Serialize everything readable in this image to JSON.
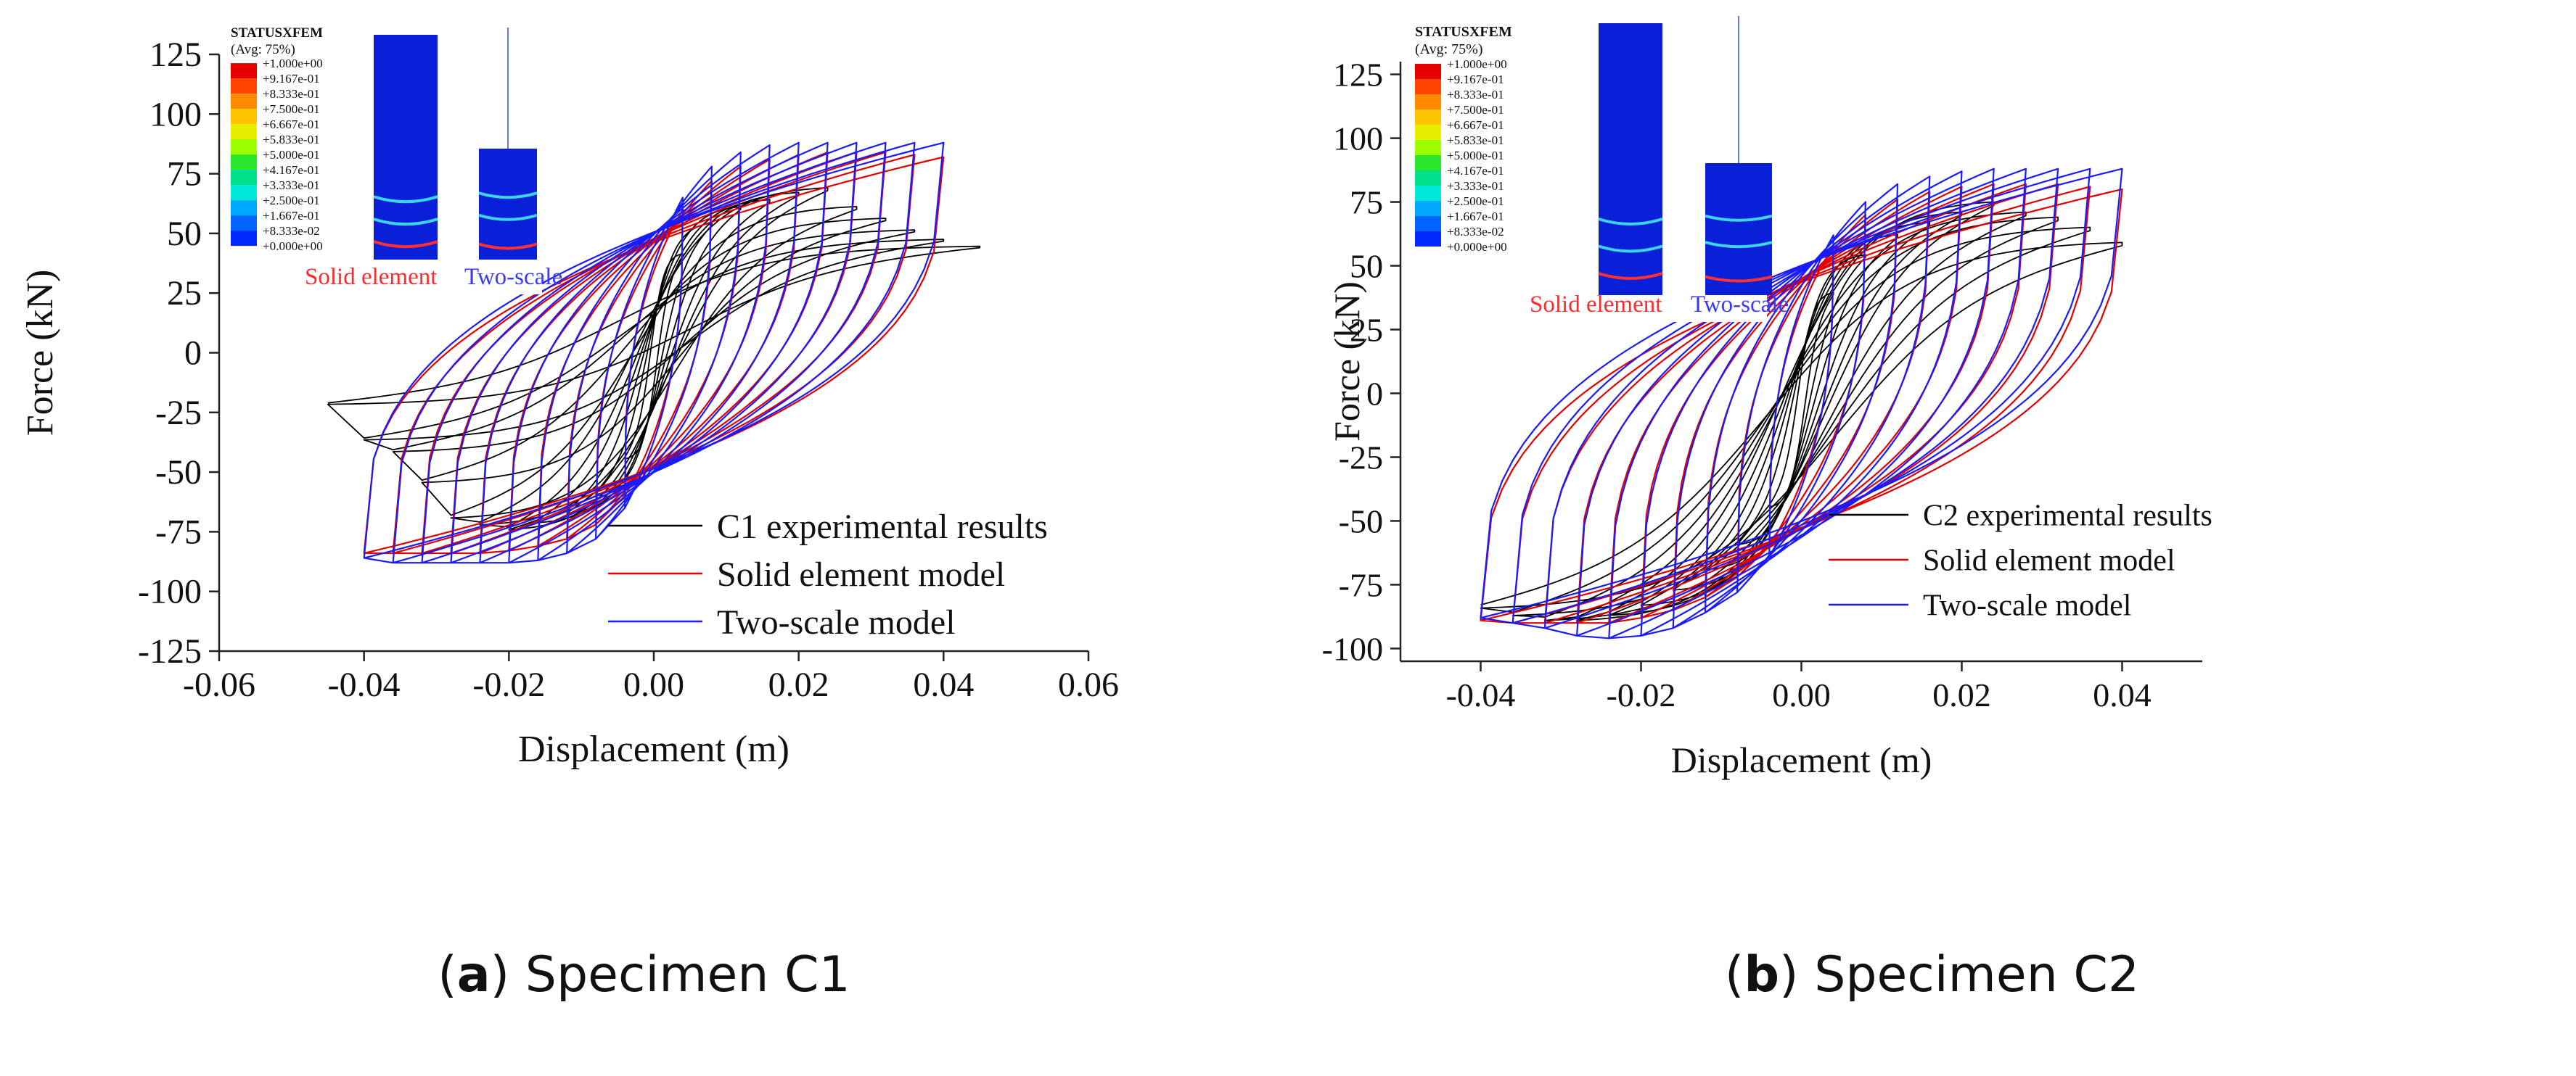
{
  "chart_data": [
    {
      "type": "line",
      "panel_label": "a",
      "caption_text": "Specimen C1",
      "xlabel": "Displacement (m)",
      "ylabel": "Force (kN)",
      "xlim": [
        -0.06,
        0.06
      ],
      "ylim": [
        -125,
        125
      ],
      "xticks": [
        -0.06,
        -0.04,
        -0.02,
        0.0,
        0.02,
        0.04,
        0.06
      ],
      "xtick_labels": [
        "-0.06",
        "-0.04",
        "-0.02",
        "0.00",
        "0.02",
        "0.04",
        "0.06"
      ],
      "yticks": [
        125,
        100,
        75,
        50,
        25,
        0,
        -25,
        -50,
        -75,
        -100,
        -125
      ],
      "ytick_labels": [
        "125",
        "100",
        "75",
        "50",
        "25",
        "0",
        "-25",
        "-50",
        "-75",
        "-100",
        "-125"
      ],
      "series": [
        {
          "name": "C1 experimental results",
          "color": "#000000",
          "amplitudes": [
            0.004,
            0.008,
            0.012,
            0.016,
            0.02,
            0.024,
            0.028,
            0.032,
            0.036,
            0.04,
            0.045
          ],
          "peak_force": [
            42,
            55,
            62,
            65,
            68,
            70,
            62,
            57,
            52,
            48,
            45
          ],
          "negative_peak_force": [
            -45,
            -60,
            -68,
            -72,
            -75,
            -73,
            -70,
            -55,
            -42,
            -37,
            -22
          ],
          "yield_force": 30,
          "pinched": true
        },
        {
          "name": "Solid element model",
          "color": "#e00000",
          "amplitudes": [
            0.004,
            0.008,
            0.012,
            0.016,
            0.02,
            0.024,
            0.028,
            0.032,
            0.036,
            0.04
          ],
          "peak_force": [
            60,
            72,
            78,
            81,
            83,
            84,
            84,
            84,
            83,
            82
          ],
          "negative_peak_force": [
            -60,
            -72,
            -78,
            -81,
            -83,
            -84,
            -84,
            -84,
            -84,
            -84
          ],
          "yield_force": 50,
          "pinched": false
        },
        {
          "name": "Two-scale model",
          "color": "#1a1aff",
          "amplitudes": [
            0.004,
            0.008,
            0.012,
            0.016,
            0.02,
            0.024,
            0.028,
            0.032,
            0.036,
            0.04
          ],
          "peak_force": [
            65,
            78,
            84,
            87,
            88,
            88,
            88,
            88,
            88,
            88
          ],
          "negative_peak_force": [
            -65,
            -78,
            -84,
            -87,
            -88,
            -88,
            -88,
            -88,
            -88,
            -86
          ],
          "yield_force": 55,
          "pinched": false
        }
      ],
      "legend_location": "lower-right",
      "inset": {
        "title_line1": "STATUSXFEM",
        "title_line2": "(Avg: 75%)",
        "scale_values": [
          "+1.000e+00",
          "+9.167e-01",
          "+8.333e-01",
          "+7.500e-01",
          "+6.667e-01",
          "+5.833e-01",
          "+5.000e-01",
          "+4.167e-01",
          "+3.333e-01",
          "+2.500e-01",
          "+1.667e-01",
          "+8.333e-02",
          "+0.000e+00"
        ],
        "scale_colors": [
          "#e60000",
          "#ff4400",
          "#ff8a00",
          "#ffc400",
          "#e8ee00",
          "#9cff00",
          "#2ce82c",
          "#00e08c",
          "#00e8d8",
          "#00a8ff",
          "#0064ff",
          "#0028ff"
        ],
        "label_solid": "Solid element",
        "label_two_scale": "Two-scale",
        "label_solid_color": "#ff2a2a",
        "label_two_scale_color": "#3a3aff"
      }
    },
    {
      "type": "line",
      "panel_label": "b",
      "caption_text": "Specimen C2",
      "xlabel": "Displacement (m)",
      "ylabel": "Force (kN)",
      "xlim": [
        -0.05,
        0.05
      ],
      "ylim": [
        -105,
        130
      ],
      "xticks": [
        -0.04,
        -0.02,
        0.0,
        0.02,
        0.04
      ],
      "xtick_labels": [
        "-0.04",
        "-0.02",
        "0.00",
        "0.02",
        "0.04"
      ],
      "yticks": [
        125,
        100,
        75,
        50,
        25,
        0,
        -25,
        -50,
        -75,
        -100
      ],
      "ytick_labels": [
        "125",
        "100",
        "75",
        "50",
        "25",
        "0",
        "-25",
        "-50",
        "-75",
        "-100"
      ],
      "series": [
        {
          "name": "C2 experimental results",
          "color": "#000000",
          "amplitudes": [
            0.004,
            0.008,
            0.012,
            0.016,
            0.02,
            0.024,
            0.028,
            0.032,
            0.036,
            0.04
          ],
          "peak_force": [
            40,
            55,
            63,
            68,
            72,
            76,
            72,
            70,
            66,
            60
          ],
          "negative_peak_force": [
            -45,
            -60,
            -70,
            -78,
            -84,
            -88,
            -90,
            -90,
            -88,
            -85
          ],
          "yield_force": 30,
          "pinched": true
        },
        {
          "name": "Solid element model",
          "color": "#e00000",
          "amplitudes": [
            0.004,
            0.008,
            0.012,
            0.016,
            0.02,
            0.024,
            0.028,
            0.032,
            0.036,
            0.04
          ],
          "peak_force": [
            58,
            70,
            76,
            79,
            81,
            82,
            82,
            82,
            81,
            80
          ],
          "negative_peak_force": [
            -60,
            -72,
            -80,
            -85,
            -88,
            -90,
            -90,
            -90,
            -90,
            -89
          ],
          "yield_force": 50,
          "pinched": false
        },
        {
          "name": "Two-scale model",
          "color": "#1a1aff",
          "amplitudes": [
            0.004,
            0.008,
            0.012,
            0.016,
            0.02,
            0.024,
            0.028,
            0.032,
            0.036,
            0.04
          ],
          "peak_force": [
            62,
            75,
            82,
            85,
            87,
            88,
            88,
            88,
            88,
            88
          ],
          "negative_peak_force": [
            -64,
            -78,
            -86,
            -92,
            -95,
            -96,
            -95,
            -92,
            -90,
            -88
          ],
          "yield_force": 55,
          "pinched": false
        }
      ],
      "legend_location": "lower-right",
      "inset": {
        "title_line1": "STATUSXFEM",
        "title_line2": "(Avg: 75%)",
        "scale_values": [
          "+1.000e+00",
          "+9.167e-01",
          "+8.333e-01",
          "+7.500e-01",
          "+6.667e-01",
          "+5.833e-01",
          "+5.000e-01",
          "+4.167e-01",
          "+3.333e-01",
          "+2.500e-01",
          "+1.667e-01",
          "+8.333e-02",
          "+0.000e+00"
        ],
        "scale_colors": [
          "#e60000",
          "#ff4400",
          "#ff8a00",
          "#ffc400",
          "#e8ee00",
          "#9cff00",
          "#2ce82c",
          "#00e08c",
          "#00e8d8",
          "#00a8ff",
          "#0064ff",
          "#0028ff"
        ],
        "label_solid": "Solid element",
        "label_two_scale": "Two-scale",
        "label_solid_color": "#ff2a2a",
        "label_two_scale_color": "#3a3aff"
      }
    }
  ]
}
